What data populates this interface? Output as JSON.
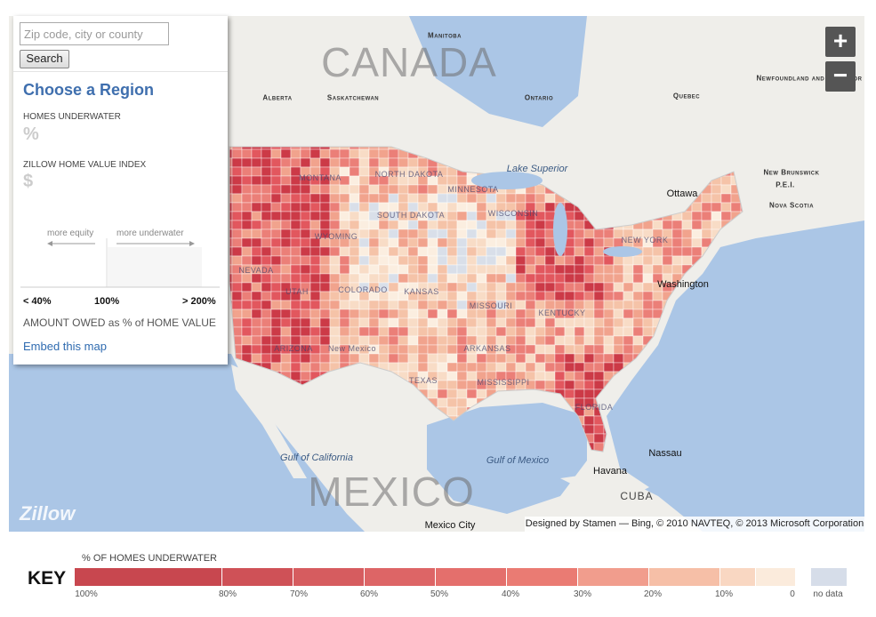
{
  "search": {
    "placeholder": "Zip code, city or county",
    "button": "Search"
  },
  "panel": {
    "title": "Choose a Region",
    "homes_underwater_label": "HOMES UNDERWATER",
    "homes_underwater_value": "%",
    "zhvi_label": "ZILLOW HOME VALUE INDEX",
    "zhvi_value": "$",
    "more_equity": "more equity",
    "more_underwater": "more underwater",
    "scale_labels": [
      "< 40%",
      "100%",
      "> 200%"
    ],
    "amount_owed": "AMOUNT OWED as % of HOME VALUE",
    "embed": "Embed this map"
  },
  "map": {
    "zoom_in": "+",
    "zoom_out": "−",
    "logo": "Zillow",
    "attribution": "Designed by Stamen — Bing, © 2010 NAVTEQ, © 2013 Microsoft Corporation",
    "labels": [
      "CANADA",
      "MEXICO",
      "Manitoba",
      "Alberta",
      "Saskatchewan",
      "Ontario",
      "Quebec",
      "Newfoundland and Labrador",
      "New Brunswick",
      "P.E.I.",
      "Nova Scotia",
      "MONTANA",
      "NORTH DAKOTA",
      "MINNESOTA",
      "SOUTH DAKOTA",
      "WISCONSIN",
      "WYOMING",
      "NEVADA",
      "UTAH",
      "COLORADO",
      "KANSAS",
      "MISSOURI",
      "KENTUCKY",
      "NEW YORK",
      "ARIZONA",
      "New Mexico",
      "ARKANSAS",
      "TEXAS",
      "MISSISSIPPI",
      "FLORIDA",
      "Ottawa",
      "Washington",
      "Havana",
      "Nassau",
      "Mexico City",
      "Gulf of California",
      "Gulf of Mexico",
      "Lake Superior",
      "CUBA"
    ]
  },
  "key": {
    "title": "KEY",
    "subtitle": "% OF HOMES UNDERWATER",
    "labels": [
      "100%",
      "80%",
      "70%",
      "60%",
      "50%",
      "40%",
      "30%",
      "20%",
      "10%",
      "0"
    ],
    "no_data": "no data"
  }
}
